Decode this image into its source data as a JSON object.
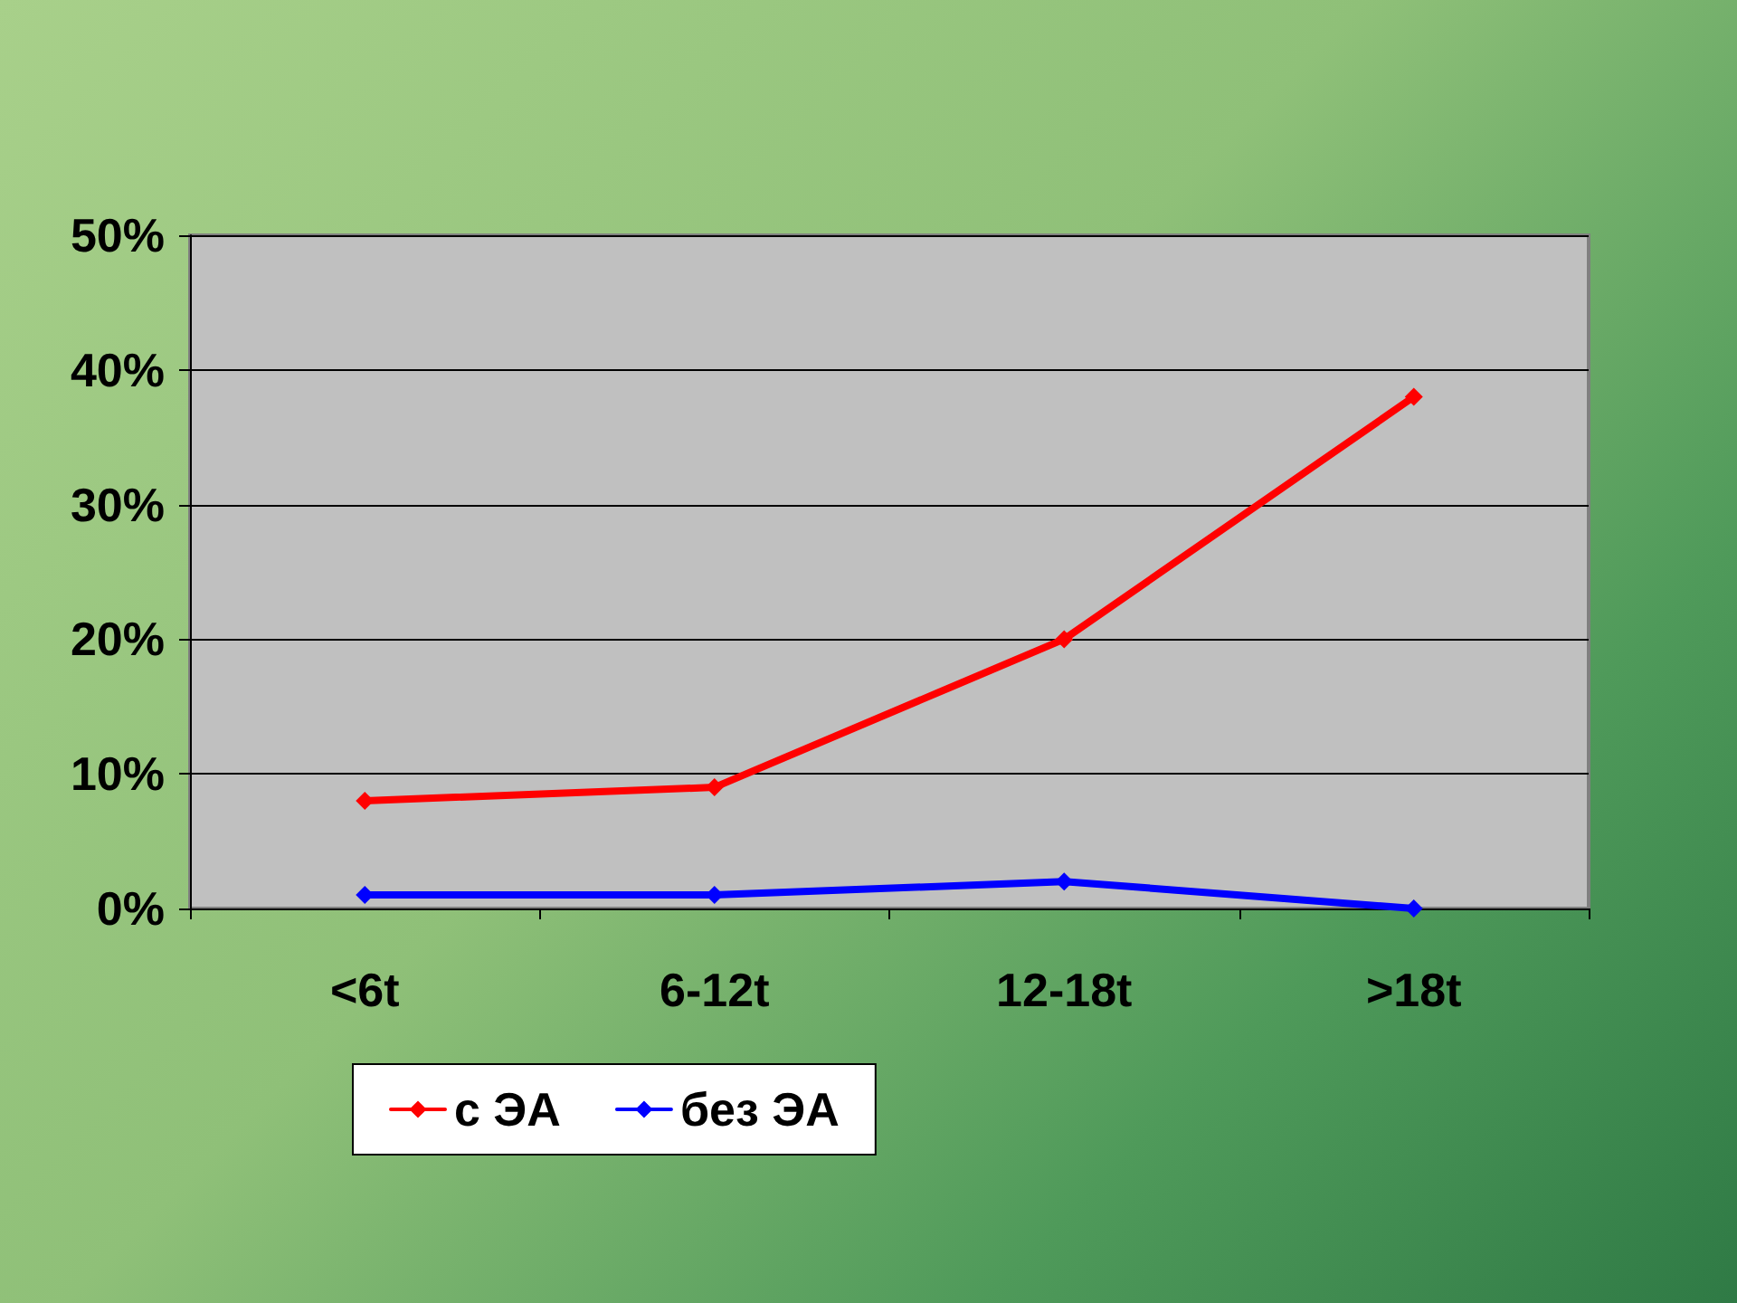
{
  "chart_data": {
    "type": "line",
    "categories": [
      "<6t",
      "6-12t",
      "12-18t",
      ">18t"
    ],
    "series": [
      {
        "name": "с ЭА",
        "color": "#ff0000",
        "values": [
          8,
          9,
          20,
          38
        ]
      },
      {
        "name": "без ЭА",
        "color": "#0000ff",
        "values": [
          1,
          1,
          2,
          0
        ]
      }
    ],
    "ylim": [
      0,
      50
    ],
    "yticks": [
      {
        "value": 0,
        "label": "0%"
      },
      {
        "value": 10,
        "label": "10%"
      },
      {
        "value": 20,
        "label": "20%"
      },
      {
        "value": 30,
        "label": "30%"
      },
      {
        "value": 40,
        "label": "40%"
      },
      {
        "value": 50,
        "label": "50%"
      }
    ],
    "grid": "y",
    "legend": "bottom",
    "marker": "diamond",
    "line_style": "solid"
  }
}
